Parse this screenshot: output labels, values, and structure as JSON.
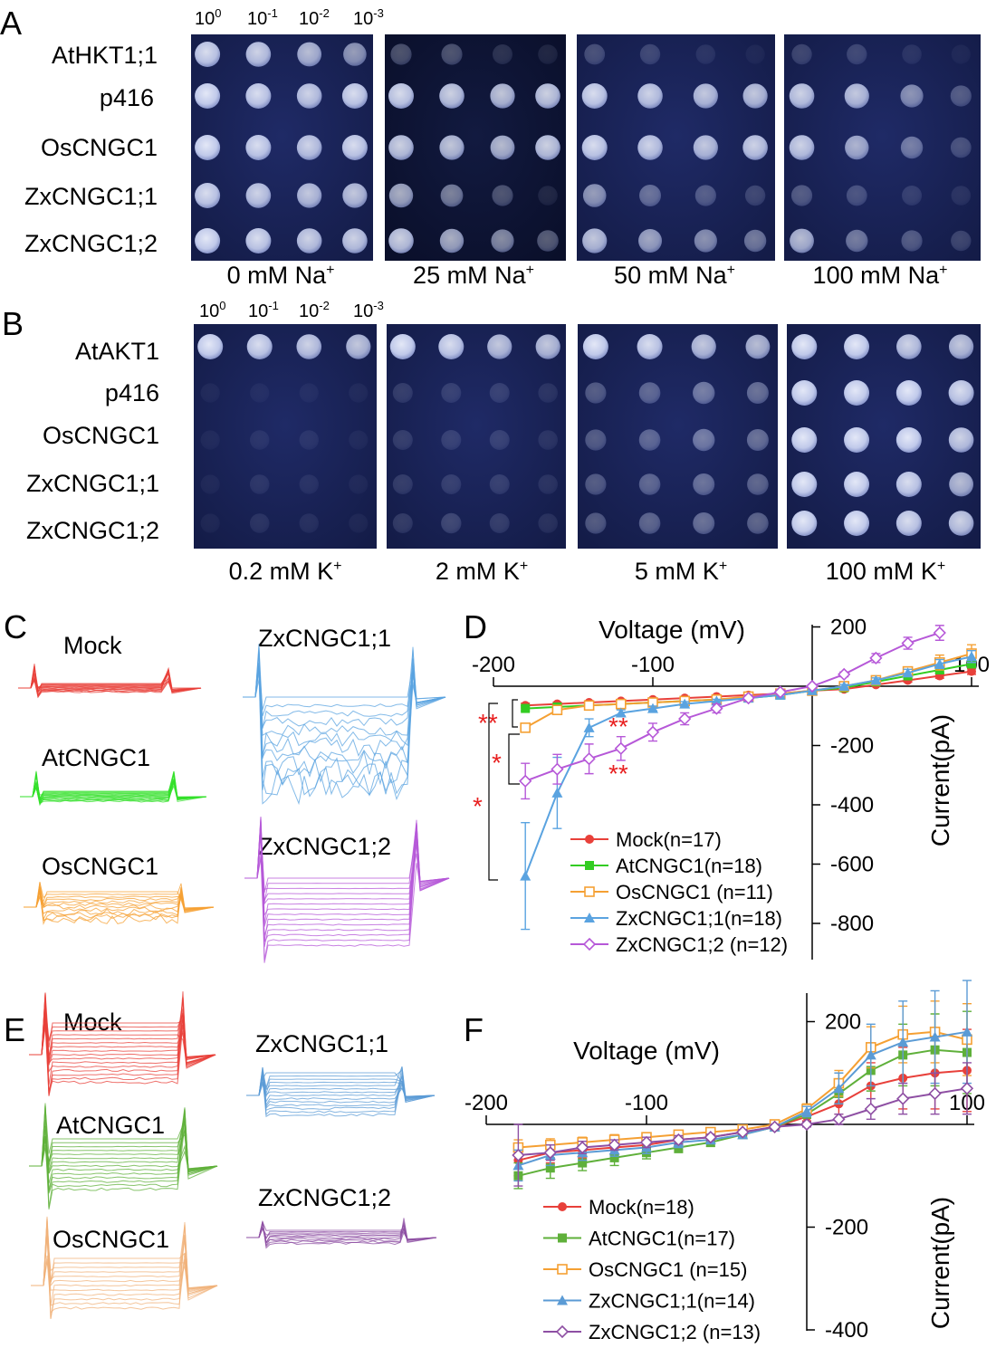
{
  "panel_labels": [
    "A",
    "B",
    "C",
    "D",
    "E",
    "F"
  ],
  "panelA": {
    "dilutions": [
      "10^0",
      "10^-1",
      "10^-2",
      "10^-3"
    ],
    "rows": [
      "AtHKT1;1",
      "p416",
      "OsCNGC1",
      "ZxCNGC1;1",
      "ZxCNGC1;2"
    ],
    "plates": [
      "0 mM Na+",
      "25 mM Na+",
      "50 mM Na+",
      "100 mM Na+"
    ],
    "growth": [
      [
        [
          0.9,
          0.85,
          0.75,
          0.6
        ],
        [
          0.3,
          0.3,
          0.15,
          0.1
        ],
        [
          0.25,
          0.2,
          0.1,
          0.05
        ],
        [
          0.2,
          0.2,
          0.1,
          0.05
        ]
      ],
      [
        [
          0.95,
          0.9,
          0.85,
          0.9
        ],
        [
          0.9,
          0.85,
          0.8,
          0.85
        ],
        [
          0.9,
          0.85,
          0.8,
          0.8
        ],
        [
          0.85,
          0.8,
          0.55,
          0.3
        ]
      ],
      [
        [
          0.95,
          0.9,
          0.85,
          0.9
        ],
        [
          0.85,
          0.8,
          0.75,
          0.85
        ],
        [
          0.9,
          0.85,
          0.8,
          0.85
        ],
        [
          0.85,
          0.7,
          0.45,
          0.25
        ]
      ],
      [
        [
          0.9,
          0.85,
          0.8,
          0.8
        ],
        [
          0.7,
          0.5,
          0.3,
          0.1
        ],
        [
          0.6,
          0.4,
          0.3,
          0.2
        ],
        [
          0.3,
          0.25,
          0.15,
          0.1
        ]
      ],
      [
        [
          0.95,
          0.9,
          0.85,
          0.85
        ],
        [
          0.85,
          0.7,
          0.55,
          0.35
        ],
        [
          0.8,
          0.65,
          0.55,
          0.45
        ],
        [
          0.75,
          0.45,
          0.3,
          0.2
        ]
      ]
    ]
  },
  "panelB": {
    "dilutions": [
      "10^0",
      "10^-1",
      "10^-2",
      "10^-3"
    ],
    "rows": [
      "AtAKT1",
      "p416",
      "OsCNGC1",
      "ZxCNGC1;1",
      "ZxCNGC1;2"
    ],
    "plates": [
      "0.2 mM K+",
      "2 mM K+",
      "5 mM K+",
      "100 mM K+"
    ],
    "growth": [
      [
        [
          0.95,
          0.9,
          0.85,
          0.8
        ],
        [
          0.95,
          0.9,
          0.8,
          0.8
        ],
        [
          0.95,
          0.9,
          0.8,
          0.75
        ],
        [
          0.95,
          0.95,
          0.85,
          0.8
        ]
      ],
      [
        [
          0.05,
          0.05,
          0.05,
          0.05
        ],
        [
          0.15,
          0.15,
          0.15,
          0.1
        ],
        [
          0.3,
          0.35,
          0.45,
          0.4
        ],
        [
          0.95,
          0.95,
          0.95,
          0.9
        ]
      ],
      [
        [
          0.05,
          0.08,
          0.08,
          0.05
        ],
        [
          0.15,
          0.15,
          0.15,
          0.1
        ],
        [
          0.3,
          0.35,
          0.45,
          0.4
        ],
        [
          0.95,
          0.95,
          0.95,
          0.85
        ]
      ],
      [
        [
          0.05,
          0.1,
          0.08,
          0.05
        ],
        [
          0.15,
          0.15,
          0.15,
          0.1
        ],
        [
          0.3,
          0.35,
          0.4,
          0.35
        ],
        [
          0.95,
          0.95,
          0.9,
          0.75
        ]
      ],
      [
        [
          0.05,
          0.1,
          0.08,
          0.05
        ],
        [
          0.15,
          0.2,
          0.15,
          0.1
        ],
        [
          0.3,
          0.35,
          0.4,
          0.35
        ],
        [
          0.95,
          0.95,
          0.9,
          0.85
        ]
      ]
    ]
  },
  "panelC": {
    "traces": [
      {
        "label": "Mock",
        "color": "#e8403a",
        "amp": 0.12
      },
      {
        "label": "AtCNGC1",
        "color": "#33e02a",
        "amp": 0.1
      },
      {
        "label": "OsCNGC1",
        "color": "#f5a033",
        "amp": 0.35
      },
      {
        "label": "ZxCNGC1;1",
        "color": "#5aa3e0",
        "amp": 1.0
      },
      {
        "label": "ZxCNGC1;2",
        "color": "#b658d8",
        "amp": 0.8
      }
    ]
  },
  "panelE": {
    "traces": [
      {
        "label": "Mock",
        "color": "#e8403a"
      },
      {
        "label": "AtCNGC1",
        "color": "#5fb03a"
      },
      {
        "label": "OsCNGC1",
        "color": "#f0b27a"
      },
      {
        "label": "ZxCNGC1;1",
        "color": "#5b9bd5"
      },
      {
        "label": "ZxCNGC1;2",
        "color": "#8e4fa3"
      }
    ]
  },
  "chart_data": [
    {
      "type": "line",
      "panel": "D",
      "title": "",
      "xlabel": "Voltage (mV)",
      "ylabel": "Current(pA)",
      "xlim": [
        -200,
        100
      ],
      "ylim": [
        -800,
        200
      ],
      "xticks": [
        -200,
        -100,
        100
      ],
      "yticks": [
        200,
        -200,
        -400,
        -600,
        -800
      ],
      "x": [
        -180,
        -160,
        -140,
        -120,
        -100,
        -80,
        -60,
        -40,
        -20,
        0,
        20,
        40,
        60,
        80,
        100
      ],
      "significance": [
        "**",
        "*",
        "*",
        "**",
        "**"
      ],
      "series": [
        {
          "name": "Mock(n=17)",
          "color": "#e8403a",
          "marker": "circle",
          "values": [
            -65,
            -60,
            -55,
            -50,
            -45,
            -40,
            -35,
            -30,
            -25,
            -15,
            -10,
            5,
            20,
            35,
            50
          ],
          "errors": [
            8,
            6,
            6,
            5,
            5,
            5,
            5,
            4,
            4,
            3,
            4,
            5,
            6,
            8,
            10
          ]
        },
        {
          "name": "AtCNGC1(n=18)",
          "color": "#33cc22",
          "marker": "square",
          "values": [
            -75,
            -70,
            -65,
            -60,
            -55,
            -50,
            -45,
            -40,
            -30,
            -15,
            -5,
            15,
            35,
            55,
            75
          ],
          "errors": [
            8,
            6,
            6,
            5,
            5,
            5,
            5,
            4,
            4,
            3,
            4,
            5,
            8,
            10,
            12
          ]
        },
        {
          "name": "OsCNGC1 (n=11)",
          "color": "#f5a033",
          "marker": "square-open",
          "values": [
            -140,
            -80,
            -65,
            -60,
            -55,
            -50,
            -45,
            -35,
            -25,
            -15,
            0,
            20,
            50,
            80,
            110
          ],
          "errors": [
            10,
            8,
            6,
            5,
            5,
            5,
            5,
            4,
            4,
            3,
            5,
            8,
            15,
            25,
            30
          ]
        },
        {
          "name": "ZxCNGC1;1(n=18)",
          "color": "#5aa3e0",
          "marker": "triangle",
          "values": [
            -640,
            -360,
            -140,
            -90,
            -75,
            -60,
            -50,
            -40,
            -30,
            -15,
            0,
            20,
            45,
            75,
            100
          ],
          "errors": [
            180,
            120,
            30,
            10,
            8,
            8,
            6,
            5,
            5,
            4,
            6,
            8,
            12,
            15,
            20
          ]
        },
        {
          "name": "ZxCNGC1;2 (n=12)",
          "color": "#b658d8",
          "marker": "diamond-open",
          "values": [
            -320,
            -280,
            -245,
            -210,
            -155,
            -110,
            -75,
            -40,
            -20,
            0,
            40,
            95,
            145,
            180,
            null
          ],
          "errors": [
            60,
            50,
            50,
            40,
            30,
            20,
            15,
            10,
            8,
            5,
            8,
            15,
            20,
            25,
            null
          ]
        }
      ]
    },
    {
      "type": "line",
      "panel": "F",
      "title": "",
      "xlabel": "Voltage (mV)",
      "ylabel": "Current(pA)",
      "xlim": [
        -200,
        100
      ],
      "ylim": [
        -400,
        200
      ],
      "xticks": [
        -200,
        -100,
        100
      ],
      "yticks": [
        200,
        -200,
        -400
      ],
      "x": [
        -180,
        -160,
        -140,
        -120,
        -100,
        -80,
        -60,
        -40,
        -20,
        0,
        20,
        40,
        60,
        80,
        100
      ],
      "series": [
        {
          "name": "Mock(n=18)",
          "color": "#e8403a",
          "marker": "circle",
          "values": [
            -70,
            -55,
            -50,
            -45,
            -40,
            -30,
            -25,
            -15,
            -5,
            15,
            40,
            75,
            90,
            100,
            105
          ],
          "errors": [
            30,
            20,
            15,
            15,
            15,
            10,
            8,
            6,
            5,
            8,
            20,
            45,
            60,
            70,
            80
          ]
        },
        {
          "name": "AtCNGC1(n=17)",
          "color": "#5fb03a",
          "marker": "square",
          "values": [
            -100,
            -85,
            -75,
            -65,
            -55,
            -45,
            -35,
            -20,
            -5,
            20,
            60,
            105,
            135,
            145,
            140
          ],
          "errors": [
            25,
            20,
            15,
            15,
            12,
            10,
            8,
            6,
            5,
            8,
            20,
            40,
            60,
            70,
            80
          ]
        },
        {
          "name": "OsCNGC1 (n=15)",
          "color": "#f5a033",
          "marker": "square-open",
          "values": [
            -45,
            -40,
            -35,
            -30,
            -25,
            -20,
            -15,
            -10,
            0,
            30,
            80,
            150,
            175,
            180,
            165
          ],
          "errors": [
            15,
            12,
            10,
            10,
            8,
            8,
            6,
            5,
            5,
            10,
            25,
            40,
            55,
            60,
            70
          ]
        },
        {
          "name": "ZxCNGC1;1(n=14)",
          "color": "#5b9bd5",
          "marker": "triangle",
          "values": [
            -80,
            -60,
            -55,
            -50,
            -45,
            -35,
            -30,
            -20,
            -5,
            25,
            70,
            135,
            160,
            170,
            180
          ],
          "errors": [
            30,
            20,
            15,
            12,
            12,
            10,
            8,
            6,
            5,
            10,
            30,
            60,
            80,
            90,
            100
          ]
        },
        {
          "name": "ZxCNGC1;2 (n=13)",
          "color": "#8e4fa3",
          "marker": "diamond-open",
          "values": [
            -60,
            -55,
            -45,
            -40,
            -35,
            -30,
            -25,
            -15,
            -5,
            0,
            10,
            30,
            50,
            60,
            70
          ],
          "errors": [
            60,
            15,
            12,
            10,
            10,
            8,
            6,
            5,
            5,
            5,
            10,
            20,
            30,
            40,
            50
          ]
        }
      ]
    }
  ]
}
